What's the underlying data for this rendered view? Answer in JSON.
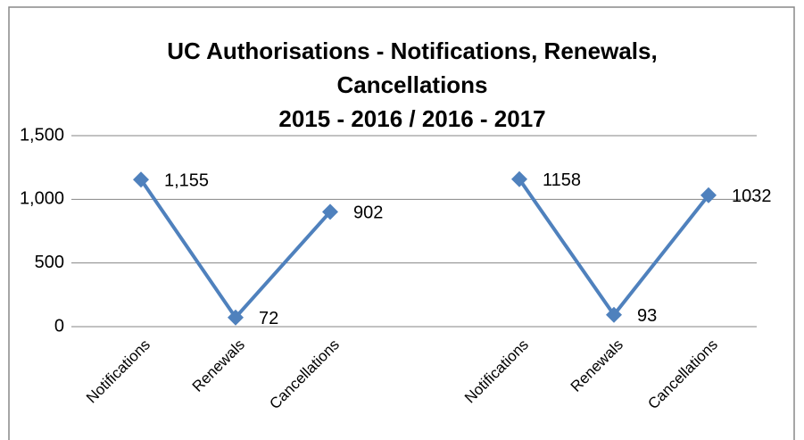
{
  "chart_data": {
    "type": "line",
    "title": "UC Authorisations - Notifications, Renewals, Cancellations",
    "subtitle": "2015 - 2016 / 2016 - 2017",
    "categories": [
      "Notifications",
      "Renewals",
      "Cancellations",
      null,
      "Notifications",
      "Renewals",
      "Cancellations"
    ],
    "values": [
      1155,
      72,
      902,
      null,
      1158,
      93,
      1032
    ],
    "value_labels": [
      "1,155",
      "72",
      "902",
      null,
      "1158",
      "93",
      "1032"
    ],
    "color": "#4f81bd",
    "ylim": [
      0,
      1500
    ],
    "yticks": [
      {
        "value": 0,
        "label": "0"
      },
      {
        "value": 500,
        "label": "500"
      },
      {
        "value": 1000,
        "label": "1,000"
      },
      {
        "value": 1500,
        "label": "1,500"
      }
    ],
    "grid": true
  }
}
